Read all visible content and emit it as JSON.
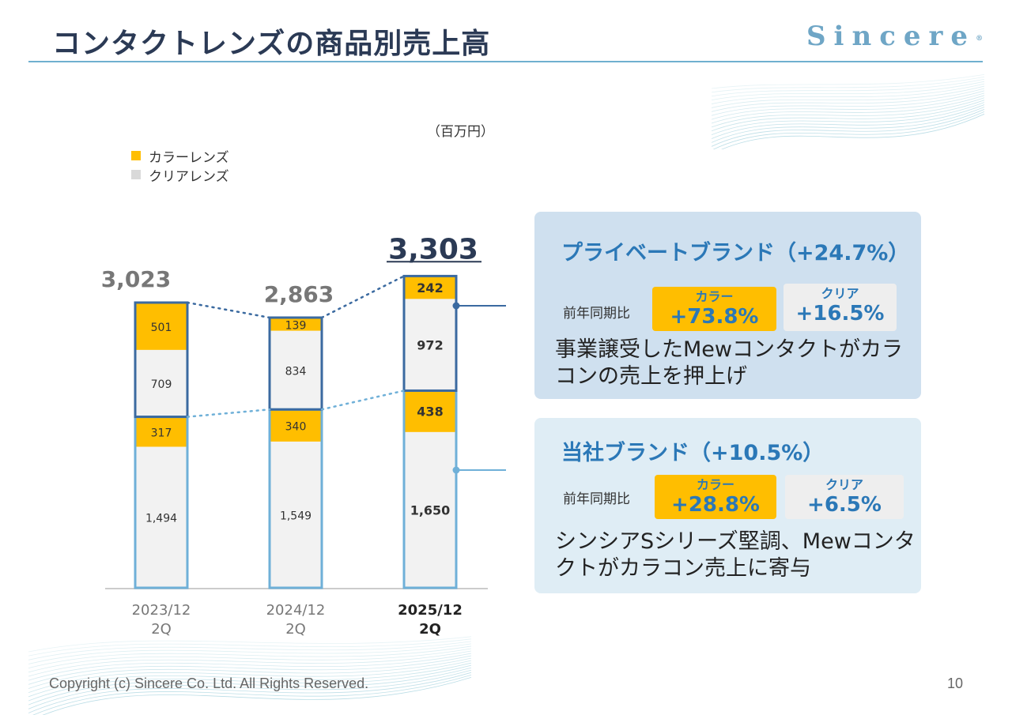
{
  "page": {
    "title": "コンタクトレンズの商品別売上高",
    "logo": "Sincere",
    "logo_mark": "®",
    "footer": "Copyright (c) Sincere Co. Ltd. All Rights Reserved.",
    "page_number": "10"
  },
  "colors": {
    "accent": "#2b78b7",
    "navy": "#2b3a55",
    "color_lens": "#ffbe00",
    "clear_lens": "#f2f2f2",
    "private_brand_border": "#3b6aa0",
    "own_brand_border": "#6fb0d8"
  },
  "chart_data": {
    "type": "bar",
    "stacked": true,
    "unit": "（百万円）",
    "categories": [
      {
        "line1": "2023/12",
        "line2": "2Q"
      },
      {
        "line1": "2024/12",
        "line2": "2Q"
      },
      {
        "line1": "2025/12",
        "line2": "2Q"
      }
    ],
    "legend": [
      "カラーレンズ",
      "クリアレンズ"
    ],
    "totals": [
      "3,023",
      "2,863",
      "3,303"
    ],
    "total_values": [
      3023,
      2863,
      3303
    ],
    "segments_bottom_to_top": [
      {
        "group": "own_brand",
        "kind": "clear",
        "values": [
          1494,
          1549,
          1650
        ],
        "labels": [
          "1,494",
          "1,549",
          "1,650"
        ]
      },
      {
        "group": "own_brand",
        "kind": "color",
        "values": [
          317,
          340,
          438
        ],
        "labels": [
          "317",
          "340",
          "438"
        ]
      },
      {
        "group": "private_brand",
        "kind": "clear",
        "values": [
          709,
          834,
          972
        ],
        "labels": [
          "709",
          "834",
          "972"
        ]
      },
      {
        "group": "private_brand",
        "kind": "color",
        "values": [
          501,
          139,
          242
        ],
        "labels": [
          "501",
          "139",
          "242"
        ]
      }
    ],
    "highlight_category": 2
  },
  "panels": {
    "private_brand": {
      "title": "プライベートブランド（+24.7%）",
      "yoy_label": "前年同期比",
      "color_label": "カラー",
      "color_value": "+73.8%",
      "clear_label": "クリア",
      "clear_value": "+16.5%",
      "description": "事業譲受したMewコンタクトがカラコンの売上を押上げ"
    },
    "own_brand": {
      "title": "当社ブランド（+10.5%）",
      "yoy_label": "前年同期比",
      "color_label": "カラー",
      "color_value": "+28.8%",
      "clear_label": "クリア",
      "clear_value": "+6.5%",
      "description": "シンシアSシリーズ堅調、Mewコンタクトがカラコン売上に寄与"
    }
  }
}
